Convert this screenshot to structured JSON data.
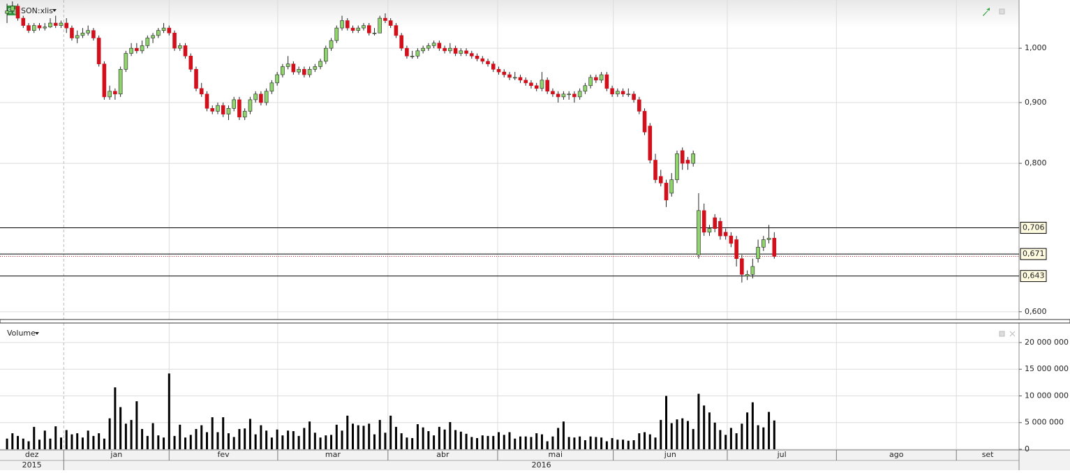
{
  "chart_data": {
    "type": "candlestick",
    "title": "SON:xlis",
    "badge": "Eq",
    "volume_label": "Volume",
    "log_scale": true,
    "grid": true,
    "up_color": "#8fd46c",
    "down_color": "#d2101c",
    "ylim": [
      0.591,
      1.098
    ],
    "yticks": [
      {
        "value": 0.6,
        "label": "0,600"
      },
      {
        "value": 0.8,
        "label": "0,800"
      },
      {
        "value": 0.9,
        "label": "0,900"
      },
      {
        "value": 1.0,
        "label": "1,000"
      }
    ],
    "levels": [
      {
        "value": 0.706,
        "label": "0,706"
      },
      {
        "value": 0.671,
        "label": "0,671"
      },
      {
        "value": 0.643,
        "label": "0,643"
      }
    ],
    "vlim": [
      0,
      23660000
    ],
    "vticks": [
      0,
      {
        "value": 5000000,
        "label": "5 000 000"
      },
      {
        "value": 10000000,
        "label": "10 000 000"
      },
      {
        "value": 15000000,
        "label": "15 000 000"
      },
      {
        "value": 20000000,
        "label": "20 000 000"
      }
    ],
    "xlim": [
      -1.3,
      187.3
    ],
    "x_first_label": "dez",
    "xticks": [
      {
        "value": 10.5,
        "label": "jan"
      },
      {
        "value": 30.0,
        "label": "fev"
      },
      {
        "value": 50.1,
        "label": "mar"
      },
      {
        "value": 70.5,
        "label": "abr"
      },
      {
        "value": 90.8,
        "label": "mai"
      },
      {
        "value": 112.2,
        "label": "jun"
      },
      {
        "value": 133.3,
        "label": "jul"
      },
      {
        "value": 153.5,
        "label": "ago"
      },
      {
        "value": 175.7,
        "label": "set"
      }
    ],
    "years": [
      "2015",
      "2016"
    ],
    "candles": [
      [
        1.07,
        1.09,
        1.05,
        1.075
      ],
      [
        1.075,
        1.095,
        1.07,
        1.085
      ],
      [
        1.085,
        1.09,
        1.055,
        1.06
      ],
      [
        1.06,
        1.065,
        1.04,
        1.045
      ],
      [
        1.045,
        1.05,
        1.03,
        1.035
      ],
      [
        1.035,
        1.05,
        1.03,
        1.045
      ],
      [
        1.045,
        1.05,
        1.035,
        1.04
      ],
      [
        1.04,
        1.05,
        1.035,
        1.042
      ],
      [
        1.042,
        1.06,
        1.04,
        1.05
      ],
      [
        1.05,
        1.065,
        1.04,
        1.045
      ],
      [
        1.045,
        1.055,
        1.04,
        1.05
      ],
      [
        1.05,
        1.06,
        1.03,
        1.04
      ],
      [
        1.04,
        1.045,
        1.015,
        1.02
      ],
      [
        1.02,
        1.035,
        1.01,
        1.025
      ],
      [
        1.025,
        1.04,
        1.02,
        1.03
      ],
      [
        1.03,
        1.045,
        1.025,
        1.035
      ],
      [
        1.035,
        1.04,
        1.015,
        1.02
      ],
      [
        1.02,
        1.025,
        0.965,
        0.97
      ],
      [
        0.97,
        0.975,
        0.905,
        0.91
      ],
      [
        0.91,
        0.93,
        0.905,
        0.92
      ],
      [
        0.92,
        0.925,
        0.905,
        0.915
      ],
      [
        0.915,
        0.965,
        0.91,
        0.96
      ],
      [
        0.96,
        0.995,
        0.955,
        0.99
      ],
      [
        0.99,
        1.01,
        0.985,
        1.0
      ],
      [
        1.0,
        1.01,
        0.99,
        0.995
      ],
      [
        0.995,
        1.015,
        0.99,
        1.005
      ],
      [
        1.005,
        1.025,
        1.0,
        1.02
      ],
      [
        1.02,
        1.03,
        1.01,
        1.025
      ],
      [
        1.025,
        1.04,
        1.02,
        1.035
      ],
      [
        1.035,
        1.05,
        1.03,
        1.04
      ],
      [
        1.04,
        1.045,
        1.025,
        1.03
      ],
      [
        1.03,
        1.035,
        0.995,
        1.0
      ],
      [
        1.0,
        1.01,
        0.995,
        1.005
      ],
      [
        1.005,
        1.01,
        0.98,
        0.985
      ],
      [
        0.985,
        0.99,
        0.955,
        0.96
      ],
      [
        0.96,
        0.965,
        0.92,
        0.925
      ],
      [
        0.925,
        0.935,
        0.91,
        0.915
      ],
      [
        0.915,
        0.92,
        0.885,
        0.89
      ],
      [
        0.89,
        0.895,
        0.88,
        0.885
      ],
      [
        0.885,
        0.9,
        0.88,
        0.895
      ],
      [
        0.895,
        0.9,
        0.875,
        0.88
      ],
      [
        0.88,
        0.895,
        0.87,
        0.89
      ],
      [
        0.89,
        0.91,
        0.885,
        0.905
      ],
      [
        0.905,
        0.91,
        0.87,
        0.875
      ],
      [
        0.875,
        0.89,
        0.87,
        0.885
      ],
      [
        0.885,
        0.91,
        0.88,
        0.905
      ],
      [
        0.905,
        0.92,
        0.9,
        0.915
      ],
      [
        0.915,
        0.92,
        0.895,
        0.9
      ],
      [
        0.9,
        0.925,
        0.895,
        0.92
      ],
      [
        0.92,
        0.94,
        0.915,
        0.935
      ],
      [
        0.935,
        0.955,
        0.93,
        0.95
      ],
      [
        0.95,
        0.97,
        0.945,
        0.965
      ],
      [
        0.965,
        0.985,
        0.96,
        0.97
      ],
      [
        0.97,
        0.975,
        0.95,
        0.955
      ],
      [
        0.955,
        0.965,
        0.95,
        0.96
      ],
      [
        0.96,
        0.965,
        0.945,
        0.95
      ],
      [
        0.95,
        0.965,
        0.945,
        0.96
      ],
      [
        0.96,
        0.97,
        0.955,
        0.965
      ],
      [
        0.965,
        0.98,
        0.96,
        0.975
      ],
      [
        0.975,
        1.005,
        0.97,
        1.0
      ],
      [
        1.0,
        1.02,
        0.995,
        1.015
      ],
      [
        1.015,
        1.045,
        1.01,
        1.04
      ],
      [
        1.04,
        1.065,
        1.035,
        1.055
      ],
      [
        1.055,
        1.06,
        1.035,
        1.04
      ],
      [
        1.04,
        1.045,
        1.03,
        1.035
      ],
      [
        1.035,
        1.045,
        1.03,
        1.04
      ],
      [
        1.04,
        1.05,
        1.035,
        1.045
      ],
      [
        1.045,
        1.05,
        1.025,
        1.03
      ],
      [
        1.03,
        1.04,
        1.025,
        1.03
      ],
      [
        1.03,
        1.065,
        1.03,
        1.06
      ],
      [
        1.06,
        1.07,
        1.05,
        1.055
      ],
      [
        1.055,
        1.06,
        1.04,
        1.045
      ],
      [
        1.045,
        1.05,
        1.02,
        1.025
      ],
      [
        1.025,
        1.03,
        0.995,
        1.0
      ],
      [
        1.0,
        1.005,
        0.98,
        0.985
      ],
      [
        0.985,
        0.995,
        0.98,
        0.985
      ],
      [
        0.985,
        1.0,
        0.98,
        0.995
      ],
      [
        0.995,
        1.005,
        0.99,
        1.0
      ],
      [
        1.0,
        1.01,
        0.995,
        1.005
      ],
      [
        1.005,
        1.015,
        1.0,
        1.01
      ],
      [
        1.01,
        1.015,
        0.995,
        1.0
      ],
      [
        1.0,
        1.005,
        0.99,
        0.995
      ],
      [
        0.995,
        1.01,
        0.99,
        1.0
      ],
      [
        1.0,
        1.005,
        0.985,
        0.99
      ],
      [
        0.99,
        1.0,
        0.985,
        0.995
      ],
      [
        0.995,
        1.0,
        0.985,
        0.99
      ],
      [
        0.99,
        0.995,
        0.98,
        0.985
      ],
      [
        0.985,
        0.99,
        0.975,
        0.98
      ],
      [
        0.98,
        0.985,
        0.97,
        0.975
      ],
      [
        0.975,
        0.98,
        0.965,
        0.97
      ],
      [
        0.97,
        0.975,
        0.955,
        0.96
      ],
      [
        0.96,
        0.965,
        0.95,
        0.955
      ],
      [
        0.955,
        0.96,
        0.945,
        0.95
      ],
      [
        0.95,
        0.955,
        0.94,
        0.945
      ],
      [
        0.945,
        0.955,
        0.94,
        0.945
      ],
      [
        0.945,
        0.95,
        0.935,
        0.94
      ],
      [
        0.94,
        0.945,
        0.93,
        0.935
      ],
      [
        0.935,
        0.94,
        0.925,
        0.93
      ],
      [
        0.93,
        0.935,
        0.92,
        0.925
      ],
      [
        0.925,
        0.955,
        0.92,
        0.94
      ],
      [
        0.94,
        0.945,
        0.915,
        0.92
      ],
      [
        0.92,
        0.925,
        0.91,
        0.915
      ],
      [
        0.915,
        0.92,
        0.9,
        0.91
      ],
      [
        0.91,
        0.92,
        0.905,
        0.915
      ],
      [
        0.915,
        0.92,
        0.905,
        0.915
      ],
      [
        0.915,
        0.92,
        0.9,
        0.91
      ],
      [
        0.91,
        0.925,
        0.905,
        0.92
      ],
      [
        0.92,
        0.935,
        0.915,
        0.93
      ],
      [
        0.93,
        0.95,
        0.925,
        0.945
      ],
      [
        0.945,
        0.95,
        0.935,
        0.94
      ],
      [
        0.94,
        0.955,
        0.935,
        0.95
      ],
      [
        0.95,
        0.955,
        0.92,
        0.925
      ],
      [
        0.925,
        0.93,
        0.91,
        0.915
      ],
      [
        0.915,
        0.925,
        0.91,
        0.92
      ],
      [
        0.92,
        0.925,
        0.91,
        0.915
      ],
      [
        0.915,
        0.925,
        0.91,
        0.915
      ],
      [
        0.915,
        0.92,
        0.9,
        0.905
      ],
      [
        0.905,
        0.91,
        0.88,
        0.885
      ],
      [
        0.885,
        0.89,
        0.845,
        0.85
      ],
      [
        0.86,
        0.865,
        0.8,
        0.805
      ],
      [
        0.805,
        0.815,
        0.77,
        0.775
      ],
      [
        0.78,
        0.79,
        0.765,
        0.77
      ],
      [
        0.77,
        0.775,
        0.735,
        0.745
      ],
      [
        0.755,
        0.785,
        0.75,
        0.775
      ],
      [
        0.775,
        0.82,
        0.77,
        0.815
      ],
      [
        0.82,
        0.825,
        0.79,
        0.8
      ],
      [
        0.805,
        0.81,
        0.79,
        0.8
      ],
      [
        0.8,
        0.82,
        0.795,
        0.815
      ],
      [
        0.67,
        0.755,
        0.665,
        0.73
      ],
      [
        0.73,
        0.74,
        0.695,
        0.7
      ],
      [
        0.7,
        0.71,
        0.695,
        0.705
      ],
      [
        0.72,
        0.725,
        0.7,
        0.705
      ],
      [
        0.715,
        0.72,
        0.69,
        0.695
      ],
      [
        0.7,
        0.705,
        0.69,
        0.695
      ],
      [
        0.695,
        0.7,
        0.68,
        0.685
      ],
      [
        0.69,
        0.695,
        0.655,
        0.665
      ],
      [
        0.665,
        0.67,
        0.635,
        0.645
      ],
      [
        0.643,
        0.65,
        0.638,
        0.645
      ],
      [
        0.645,
        0.665,
        0.64,
        0.655
      ],
      [
        0.665,
        0.69,
        0.66,
        0.68
      ],
      [
        0.68,
        0.695,
        0.675,
        0.69
      ],
      [
        0.69,
        0.71,
        0.685,
        0.692
      ],
      [
        0.692,
        0.7,
        0.665,
        0.668
      ]
    ],
    "volumes": [
      2000000,
      3000000,
      2500000,
      2000000,
      1500000,
      4200000,
      1800000,
      3500000,
      2000000,
      4300000,
      2200000,
      3600000,
      2800000,
      3000000,
      2200000,
      3500000,
      2500000,
      3000000,
      2000000,
      5800000,
      11600000,
      7900000,
      4800000,
      5500000,
      9000000,
      3800000,
      2500000,
      4900000,
      2600000,
      2200000,
      14200000,
      2500000,
      4600000,
      2200000,
      2700000,
      3800000,
      4500000,
      3200000,
      6000000,
      3200000,
      6000000,
      3000000,
      2300000,
      3800000,
      3900000,
      5700000,
      2800000,
      4500000,
      3500000,
      2200000,
      3700000,
      2600000,
      3500000,
      3400000,
      2500000,
      4000000,
      5200000,
      3100000,
      2200000,
      2600000,
      2700000,
      4600000,
      3500000,
      6300000,
      4800000,
      4500000,
      4400000,
      4800000,
      2800000,
      5500000,
      3100000,
      6300000,
      4200000,
      3000000,
      2200000,
      2100000,
      4700000,
      4100000,
      3400000,
      2600000,
      4200000,
      3700000,
      5100000,
      3600000,
      3300000,
      2900000,
      2300000,
      2100000,
      2600000,
      2500000,
      2500000,
      3200000,
      2700000,
      3200000,
      2000000,
      2400000,
      2400000,
      2300000,
      3000000,
      2800000,
      1500000,
      2400000,
      4000000,
      5200000,
      2300000,
      2200000,
      2400000,
      1700000,
      2400000,
      2300000,
      2200000,
      1500000,
      2100000,
      1800000,
      1800000,
      1600000,
      1700000,
      3000000,
      3200000,
      2800000,
      2200000,
      5500000,
      10000000,
      4900000,
      5600000,
      5800000,
      5300000,
      3800000,
      10400000,
      8200000,
      6900000,
      5000000,
      3600000,
      2700000,
      4000000,
      3000000,
      4800000,
      6900000,
      8800000,
      4500000,
      4100000,
      7000000,
      5400000
    ]
  }
}
